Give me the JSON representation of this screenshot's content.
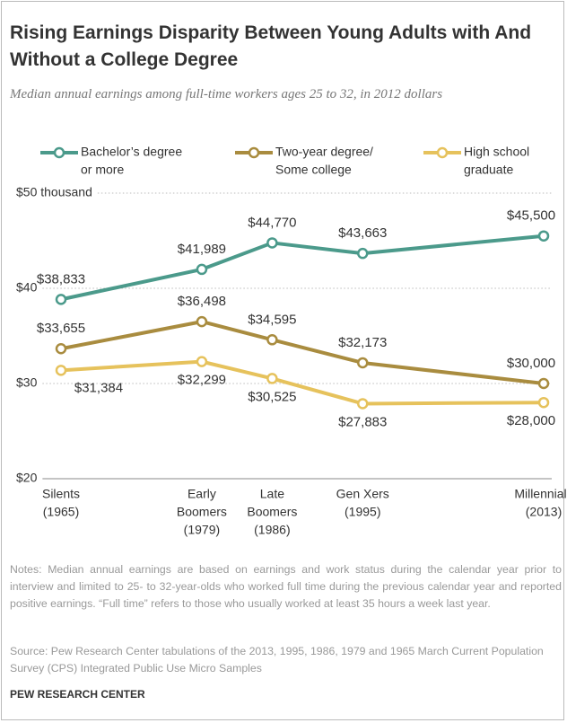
{
  "chart_data": {
    "type": "line",
    "title": "Rising Earnings Disparity Between Young Adults with And Without a College Degree",
    "subtitle": "Median annual earnings among full-time workers ages 25 to 32, in 2012 dollars",
    "x": [
      1965,
      1979,
      1986,
      1995,
      2013
    ],
    "categories": [
      [
        "Silents",
        "(1965)"
      ],
      [
        "Early",
        "Boomers",
        "(1979)"
      ],
      [
        "Late",
        "Boomers",
        "(1986)"
      ],
      [
        "Gen Xers",
        "(1995)"
      ],
      [
        "Millennials",
        "(2013)"
      ]
    ],
    "xlim": [
      1965,
      2013
    ],
    "ylim": [
      20,
      50
    ],
    "yticks": [
      {
        "value": 50,
        "label": "$50 thousand"
      },
      {
        "value": 40,
        "label": "$40"
      },
      {
        "value": 30,
        "label": "$30"
      },
      {
        "value": 20,
        "label": "$20"
      }
    ],
    "grid": true,
    "series": [
      {
        "name": [
          "Bachelor’s degree",
          "or more"
        ],
        "color": "#4b9a8b",
        "values": [
          38.833,
          41.989,
          44.77,
          43.663,
          45.5
        ],
        "value_labels": [
          "$38,833",
          "$41,989",
          "$44,770",
          "$43,663",
          "$45,500"
        ]
      },
      {
        "name": [
          "Two-year degree/",
          "Some college"
        ],
        "color": "#a98c3f",
        "values": [
          33.655,
          36.498,
          34.595,
          32.173,
          30.0
        ],
        "value_labels": [
          "$33,655",
          "$36,498",
          "$34,595",
          "$32,173",
          "$30,000"
        ]
      },
      {
        "name": [
          "High school",
          "graduate"
        ],
        "color": "#e6c25c",
        "values": [
          31.384,
          32.299,
          30.525,
          27.883,
          28.0
        ],
        "value_labels": [
          "$31,384",
          "$32,299",
          "$30,525",
          "$27,883",
          "$28,000"
        ]
      }
    ],
    "notes": "Notes: Median annual earnings are based on earnings and work status during the calendar year prior to interview and limited to 25- to 32-year-olds who worked full time during the previous calendar year and reported positive earnings. “Full time” refers to those who usually worked at least 35 hours a week last year.",
    "source": "Source: Pew Research Center tabulations of the 2013, 1995, 1986, 1979 and 1965 March Current Population Survey (CPS) Integrated Public Use Micro Samples",
    "footer": "PEW RESEARCH CENTER"
  }
}
